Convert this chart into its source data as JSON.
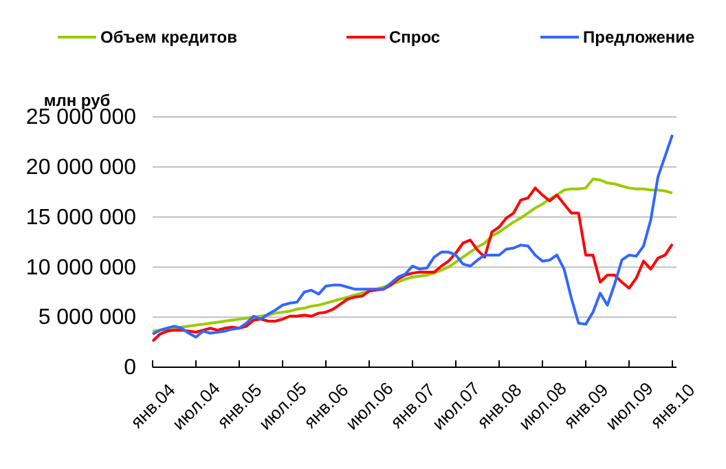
{
  "chart_data": {
    "type": "line",
    "ylabel": "млн руб",
    "categories": [
      "янв.04",
      null,
      null,
      null,
      null,
      null,
      "июл.04",
      null,
      null,
      null,
      null,
      null,
      "янв.05",
      null,
      null,
      null,
      null,
      null,
      "июл.05",
      null,
      null,
      null,
      null,
      null,
      "янв.06",
      null,
      null,
      null,
      null,
      null,
      "июл.06",
      null,
      null,
      null,
      null,
      null,
      "янв.07",
      null,
      null,
      null,
      null,
      null,
      "июл.07",
      null,
      null,
      null,
      null,
      null,
      "янв.08",
      null,
      null,
      null,
      null,
      null,
      "июл.08",
      null,
      null,
      null,
      null,
      null,
      "янв.09",
      null,
      null,
      null,
      null,
      null,
      "июл.09",
      null,
      null,
      null,
      null,
      null,
      "янв.10"
    ],
    "series": [
      {
        "name": "Объем кредитов",
        "color": "#99cc00",
        "values": [
          3600000,
          3700000,
          3800000,
          3900000,
          4000000,
          4100000,
          4200000,
          4300000,
          4400000,
          4500000,
          4600000,
          4700000,
          4800000,
          4900000,
          5000000,
          5100000,
          5200000,
          5400000,
          5500000,
          5600000,
          5800000,
          5900000,
          6100000,
          6200000,
          6400000,
          6600000,
          6800000,
          7000000,
          7200000,
          7400000,
          7600000,
          7800000,
          8000000,
          8300000,
          8500000,
          8800000,
          9000000,
          9100000,
          9200000,
          9400000,
          9700000,
          10000000,
          10500000,
          11000000,
          11500000,
          12000000,
          12400000,
          13100000,
          13500000,
          14000000,
          14500000,
          14900000,
          15400000,
          15900000,
          16300000,
          16800000,
          17200000,
          17700000,
          17800000,
          17800000,
          17900000,
          18800000,
          18700000,
          18400000,
          18300000,
          18100000,
          17900000,
          17800000,
          17800000,
          17700000,
          17700000,
          17600000,
          17400000
        ]
      },
      {
        "name": "Спрос",
        "color": "#ff0000",
        "values": [
          2600000,
          3300000,
          3600000,
          3700000,
          3700000,
          3600000,
          3500000,
          3700000,
          3900000,
          3700000,
          3900000,
          4000000,
          3900000,
          4100000,
          4700000,
          4800000,
          4600000,
          4600000,
          4800000,
          5100000,
          5100000,
          5200000,
          5100000,
          5400000,
          5500000,
          5800000,
          6300000,
          6800000,
          7000000,
          7100000,
          7600000,
          7700000,
          7800000,
          8200000,
          8800000,
          9200000,
          9400000,
          9500000,
          9500000,
          9500000,
          10100000,
          10600000,
          11400000,
          12400000,
          12700000,
          11700000,
          11000000,
          13500000,
          14000000,
          14900000,
          15400000,
          16700000,
          16900000,
          17900000,
          17200000,
          16600000,
          17200000,
          16300000,
          15400000,
          15400000,
          11200000,
          11200000,
          8500000,
          9200000,
          9200000,
          8500000,
          7900000,
          8900000,
          10600000,
          9800000,
          10900000,
          11200000,
          12300000
        ]
      },
      {
        "name": "Предложение",
        "color": "#3366ff",
        "values": [
          3300000,
          3700000,
          3900000,
          4100000,
          3900000,
          3400000,
          3000000,
          3600000,
          3400000,
          3500000,
          3600000,
          3800000,
          3900000,
          4400000,
          5100000,
          4800000,
          5300000,
          5700000,
          6200000,
          6400000,
          6500000,
          7500000,
          7700000,
          7300000,
          8100000,
          8200000,
          8200000,
          8000000,
          7800000,
          7800000,
          7800000,
          7800000,
          7800000,
          8400000,
          9000000,
          9300000,
          10100000,
          9800000,
          9900000,
          11000000,
          11500000,
          11500000,
          11200000,
          10300000,
          10100000,
          10700000,
          11200000,
          11200000,
          11200000,
          11800000,
          11900000,
          12200000,
          12100000,
          11200000,
          10600000,
          10700000,
          11200000,
          9800000,
          6900000,
          4400000,
          4300000,
          5500000,
          7400000,
          6200000,
          8300000,
          10700000,
          11200000,
          11100000,
          12100000,
          14700000,
          19000000,
          21100000,
          23200000
        ]
      }
    ],
    "ylim": [
      0,
      25000000
    ],
    "yticks": [
      {
        "value": 0,
        "label": "0"
      },
      {
        "value": 5000000,
        "label": "5 000 000"
      },
      {
        "value": 10000000,
        "label": "10 000 000"
      },
      {
        "value": 15000000,
        "label": "15 000 000"
      },
      {
        "value": 20000000,
        "label": "20 000 000"
      },
      {
        "value": 25000000,
        "label": "25 000 000"
      }
    ],
    "grid": "y",
    "legend": "top",
    "line_style": "solid",
    "marker": "none"
  }
}
